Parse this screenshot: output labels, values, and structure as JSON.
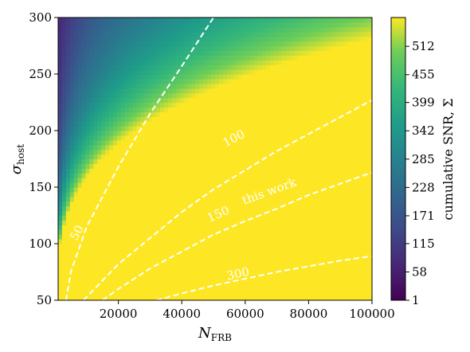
{
  "chart_data": {
    "type": "heatmap",
    "title": "",
    "xlabel": {
      "main": "N",
      "sub": "FRB"
    },
    "ylabel": {
      "main": "σ",
      "sub": "host"
    },
    "xlim": [
      1000,
      100000
    ],
    "ylim": [
      50,
      300
    ],
    "x_ticks": [
      20000,
      40000,
      60000,
      80000,
      100000
    ],
    "x_tick_labels": [
      "20000",
      "40000",
      "60000",
      "80000",
      "100000"
    ],
    "y_ticks": [
      50,
      100,
      150,
      200,
      250,
      300
    ],
    "y_tick_labels": [
      "50",
      "100",
      "150",
      "200",
      "250",
      "300"
    ],
    "colorbar": {
      "label": "cumulative SNR, Σ",
      "ticks": [
        1,
        58,
        115,
        171,
        228,
        285,
        342,
        399,
        455,
        512
      ],
      "tick_labels": [
        "1",
        "58",
        "115",
        "171",
        "228",
        "285",
        "342",
        "399",
        "455",
        "512"
      ],
      "range": [
        1,
        570
      ],
      "colormap": "viridis"
    },
    "contours": [
      {
        "level": 50,
        "label": "50",
        "points": [
          [
            3500,
            50
          ],
          [
            5000,
            75
          ],
          [
            10000,
            115
          ],
          [
            20000,
            168
          ],
          [
            30000,
            215
          ],
          [
            40000,
            257
          ],
          [
            50000,
            300
          ]
        ]
      },
      {
        "level": 100,
        "label": "100",
        "points": [
          [
            9000,
            50
          ],
          [
            20000,
            82
          ],
          [
            30000,
            105
          ],
          [
            40000,
            128
          ],
          [
            50000,
            148
          ],
          [
            60000,
            165
          ],
          [
            70000,
            182
          ],
          [
            80000,
            197
          ],
          [
            90000,
            212
          ],
          [
            100000,
            227
          ]
        ]
      },
      {
        "level": 150,
        "label": "150",
        "points": [
          [
            15000,
            50
          ],
          [
            20000,
            60
          ],
          [
            30000,
            78
          ],
          [
            40000,
            93
          ],
          [
            50000,
            108
          ],
          [
            60000,
            120
          ],
          [
            70000,
            131
          ],
          [
            80000,
            143
          ],
          [
            90000,
            153
          ],
          [
            100000,
            163
          ]
        ]
      },
      {
        "level": 300,
        "label": "300",
        "points": [
          [
            32000,
            50
          ],
          [
            40000,
            56
          ],
          [
            50000,
            63
          ],
          [
            60000,
            69
          ],
          [
            70000,
            75
          ],
          [
            80000,
            80
          ],
          [
            90000,
            85
          ],
          [
            100000,
            89
          ]
        ]
      }
    ],
    "annotations": [
      {
        "text": "this work"
      }
    ]
  }
}
